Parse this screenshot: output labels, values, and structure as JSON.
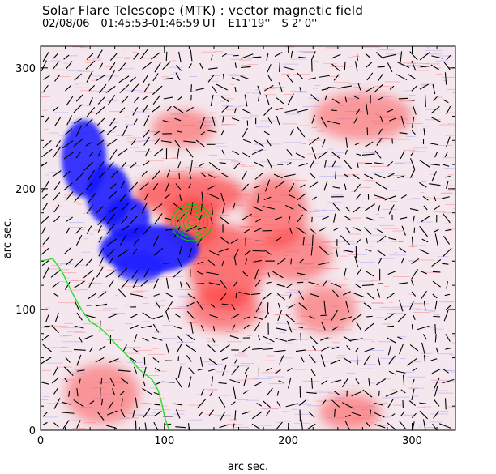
{
  "chart_data": {
    "type": "heatmap",
    "title": "Solar Flare Telescope (MTK) : vector magnetic field",
    "date": "02/08/06",
    "time_range": "01:45:53-01:46:59 UT",
    "pos_ew": "E11'19''",
    "pos_ns": "S 2' 0''",
    "xlabel": "arc sec.",
    "ylabel": "arc sec.",
    "xlim": [
      0,
      335
    ],
    "ylim": [
      0,
      318
    ],
    "xticks": [
      0,
      100,
      200,
      300
    ],
    "yticks": [
      0,
      100,
      200,
      300
    ],
    "colors": {
      "positive": "#ff3b3b",
      "negative": "#1a1aff",
      "vectors": "#000000",
      "contour": "#00cc00",
      "limb": "#33dd33"
    },
    "negative_regions": [
      {
        "x": 35,
        "y": 225,
        "rx": 18,
        "ry": 32,
        "strength": 0.9
      },
      {
        "x": 55,
        "y": 195,
        "rx": 18,
        "ry": 25,
        "strength": 0.95
      },
      {
        "x": 70,
        "y": 175,
        "rx": 18,
        "ry": 18,
        "strength": 0.9
      },
      {
        "x": 88,
        "y": 150,
        "rx": 40,
        "ry": 20,
        "strength": 1.0
      },
      {
        "x": 80,
        "y": 135,
        "rx": 20,
        "ry": 12,
        "strength": 0.7
      }
    ],
    "positive_regions": [
      {
        "x": 122,
        "y": 172,
        "rx": 22,
        "ry": 20,
        "strength": 1.0
      },
      {
        "x": 120,
        "y": 195,
        "rx": 45,
        "ry": 18,
        "strength": 0.75
      },
      {
        "x": 150,
        "y": 135,
        "rx": 30,
        "ry": 35,
        "strength": 0.7
      },
      {
        "x": 148,
        "y": 100,
        "rx": 30,
        "ry": 18,
        "strength": 0.55
      },
      {
        "x": 190,
        "y": 180,
        "rx": 25,
        "ry": 30,
        "strength": 0.5
      },
      {
        "x": 205,
        "y": 145,
        "rx": 30,
        "ry": 22,
        "strength": 0.4
      },
      {
        "x": 115,
        "y": 250,
        "rx": 25,
        "ry": 15,
        "strength": 0.35
      },
      {
        "x": 230,
        "y": 100,
        "rx": 25,
        "ry": 20,
        "strength": 0.3
      },
      {
        "x": 250,
        "y": 15,
        "rx": 25,
        "ry": 15,
        "strength": 0.35
      },
      {
        "x": 260,
        "y": 260,
        "rx": 40,
        "ry": 20,
        "strength": 0.25
      },
      {
        "x": 50,
        "y": 30,
        "rx": 30,
        "ry": 25,
        "strength": 0.3
      }
    ],
    "contour_center": {
      "x": 122,
      "y": 172
    },
    "contour_radii": [
      3,
      6,
      9,
      12,
      15
    ],
    "limb_curve": [
      [
        0,
        140
      ],
      [
        10,
        142
      ],
      [
        18,
        130
      ],
      [
        25,
        115
      ],
      [
        33,
        100
      ],
      [
        40,
        90
      ],
      [
        48,
        85
      ],
      [
        55,
        78
      ],
      [
        60,
        72
      ],
      [
        70,
        62
      ],
      [
        80,
        50
      ],
      [
        90,
        42
      ],
      [
        95,
        33
      ],
      [
        98,
        22
      ],
      [
        100,
        12
      ],
      [
        102,
        5
      ],
      [
        104,
        0
      ]
    ]
  }
}
